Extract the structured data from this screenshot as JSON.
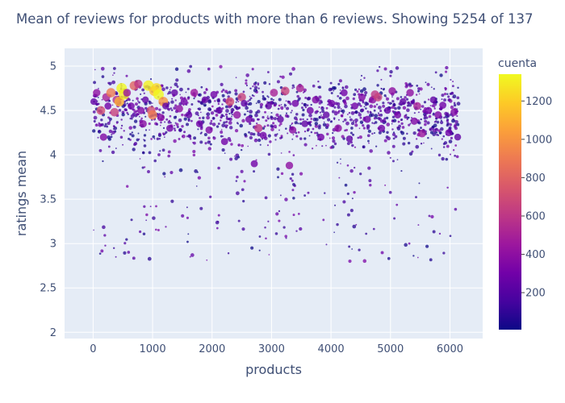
{
  "chart_data": {
    "type": "scatter",
    "title": "Mean of reviews for products with more than 6 reviews. Showing 5254 of 137",
    "xlabel": "products",
    "ylabel": "ratings mean",
    "xlim": [
      -480,
      6550
    ],
    "ylim": [
      1.93,
      5.2
    ],
    "x_ticks": [
      0,
      1000,
      2000,
      3000,
      4000,
      5000,
      6000
    ],
    "x_tick_labels": [
      "0",
      "1000",
      "2000",
      "3000",
      "4000",
      "5000",
      "6000"
    ],
    "y_ticks": [
      2,
      2.5,
      3,
      3.5,
      4,
      4.5,
      5
    ],
    "y_tick_labels": [
      "2",
      "2.5",
      "3",
      "3.5",
      "4",
      "4.5",
      "5"
    ],
    "grid": true,
    "colorbar": {
      "title": "cuenta",
      "range": [
        7,
        1340
      ],
      "ticks": [
        200,
        400,
        600,
        800,
        1000,
        1200
      ],
      "tick_labels": [
        "200",
        "400",
        "600",
        "800",
        "1000",
        "1200"
      ],
      "colorscale": [
        "#0d0887",
        "#46039f",
        "#7201a8",
        "#9c179e",
        "#bd3786",
        "#d8576b",
        "#ed7953",
        "#fb9f3a",
        "#fdca26",
        "#f0f921"
      ]
    },
    "marker_size_encodes": "cuenta",
    "series": [
      {
        "x": [
          12,
          60,
          130,
          175,
          220,
          250,
          300,
          360,
          395,
          440,
          480,
          520,
          570,
          640,
          690,
          760,
          805,
          840,
          880,
          930,
          975,
          1000,
          1030,
          1065,
          1100,
          1140,
          1180,
          1220,
          1290,
          1370,
          1450,
          1530,
          1610,
          1700,
          1790,
          1880,
          1950,
          2030,
          2120,
          2210,
          2300,
          2420,
          2500,
          2540,
          2620,
          2710,
          2780,
          2860,
          2950,
          3040,
          3150,
          3230,
          3300,
          3355,
          3400,
          3480,
          3560,
          3650,
          3740,
          3830,
          3920,
          4010,
          4120,
          4220,
          4310,
          4400,
          4520,
          4610,
          4700,
          4740,
          4790,
          4850,
          4950,
          5030,
          5120,
          5210,
          5330,
          5400,
          5450,
          5530,
          5640,
          5720,
          5800,
          5880,
          5980,
          6070,
          6130
        ],
        "y": [
          4.6,
          4.7,
          4.5,
          4.2,
          4.65,
          4.55,
          4.7,
          4.48,
          4.62,
          4.6,
          4.75,
          4.68,
          4.7,
          4.55,
          4.78,
          4.8,
          4.5,
          4.35,
          4.62,
          4.78,
          4.5,
          4.45,
          4.72,
          4.75,
          4.68,
          4.42,
          4.6,
          4.55,
          4.3,
          4.7,
          4.52,
          4.6,
          4.45,
          4.7,
          4.35,
          4.62,
          4.28,
          4.68,
          4.5,
          4.15,
          4.6,
          4.45,
          4.65,
          4.58,
          4.4,
          3.9,
          4.3,
          4.22,
          4.55,
          4.7,
          4.4,
          4.72,
          3.88,
          4.28,
          4.58,
          4.75,
          4.35,
          4.5,
          4.62,
          4.2,
          4.45,
          4.58,
          4.3,
          4.7,
          4.18,
          4.55,
          4.65,
          4.4,
          4.62,
          4.68,
          4.65,
          4.3,
          4.5,
          4.72,
          4.45,
          4.6,
          4.7,
          4.38,
          4.55,
          4.24,
          4.5,
          4.62,
          4.45,
          4.56,
          4.25,
          4.48,
          4.2
        ],
        "cuenta": [
          250,
          400,
          700,
          350,
          500,
          300,
          900,
          650,
          550,
          1100,
          1340,
          1300,
          450,
          300,
          800,
          600,
          350,
          380,
          250,
          1320,
          700,
          900,
          1150,
          1250,
          1340,
          380,
          1000,
          250,
          300,
          250,
          400,
          300,
          250,
          450,
          300,
          250,
          350,
          300,
          250,
          300,
          700,
          400,
          650,
          250,
          300,
          300,
          600,
          300,
          250,
          500,
          250,
          650,
          400,
          380,
          300,
          500,
          250,
          300,
          350,
          300,
          250,
          300,
          400,
          300,
          250,
          300,
          350,
          300,
          400,
          600,
          650,
          300,
          250,
          400,
          300,
          250,
          400,
          350,
          500,
          450,
          300,
          250,
          350,
          300,
          300,
          350,
          250
        ]
      }
    ]
  }
}
